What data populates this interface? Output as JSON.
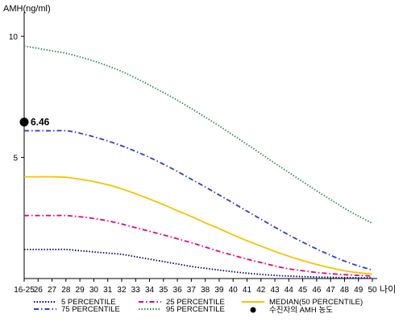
{
  "chart_data": {
    "type": "line",
    "ylabel": "AMH(ng/ml)",
    "xlabel": "나이",
    "x": [
      "16-25",
      "26",
      "27",
      "28",
      "29",
      "30",
      "31",
      "32",
      "33",
      "34",
      "35",
      "36",
      "37",
      "38",
      "39",
      "40",
      "41",
      "42",
      "43",
      "44",
      "45",
      "46",
      "47",
      "48",
      "49",
      "50"
    ],
    "yticks": [
      5,
      10
    ],
    "ylim": [
      0,
      11
    ],
    "grid": false,
    "series": [
      {
        "name": "5 PERCENTILE",
        "color": "#000080",
        "dash": "dotted",
        "values": [
          1.2,
          1.2,
          1.2,
          1.2,
          1.15,
          1.1,
          1.05,
          1.0,
          0.9,
          0.8,
          0.7,
          0.6,
          0.5,
          0.42,
          0.35,
          0.28,
          0.22,
          0.17,
          0.13,
          0.1,
          0.08,
          0.06,
          0.05,
          0.04,
          0.03,
          0.03
        ]
      },
      {
        "name": "25 PERCENTILE",
        "color": "#e6007e",
        "dash": "dashdot",
        "values": [
          2.6,
          2.6,
          2.6,
          2.6,
          2.55,
          2.48,
          2.38,
          2.25,
          2.1,
          1.95,
          1.8,
          1.64,
          1.48,
          1.3,
          1.12,
          0.96,
          0.8,
          0.66,
          0.52,
          0.4,
          0.32,
          0.25,
          0.2,
          0.16,
          0.13,
          0.1
        ]
      },
      {
        "name": "MEDIAN(50 PERCENTILE)",
        "color": "#f5c400",
        "dash": "solid",
        "values": [
          4.2,
          4.2,
          4.2,
          4.18,
          4.1,
          4.0,
          3.87,
          3.7,
          3.5,
          3.28,
          3.05,
          2.8,
          2.56,
          2.3,
          2.06,
          1.8,
          1.56,
          1.34,
          1.12,
          0.92,
          0.74,
          0.58,
          0.44,
          0.32,
          0.24,
          0.18
        ]
      },
      {
        "name": "75 PERCENTILE",
        "color": "#2e3ec8",
        "dash": "dashdot",
        "values": [
          6.1,
          6.1,
          6.1,
          6.1,
          6.0,
          5.85,
          5.68,
          5.48,
          5.25,
          5.0,
          4.72,
          4.42,
          4.1,
          3.78,
          3.45,
          3.12,
          2.78,
          2.45,
          2.12,
          1.8,
          1.5,
          1.22,
          0.96,
          0.72,
          0.52,
          0.35
        ]
      },
      {
        "name": "95 PERCENTILE",
        "color": "#2e8b57",
        "dash": "dotted",
        "values": [
          9.6,
          9.5,
          9.4,
          9.3,
          9.15,
          8.98,
          8.78,
          8.55,
          8.28,
          7.98,
          7.68,
          7.36,
          7.02,
          6.66,
          6.3,
          5.92,
          5.54,
          5.15,
          4.76,
          4.38,
          4.0,
          3.62,
          3.26,
          2.9,
          2.58,
          2.28
        ]
      }
    ],
    "marker": {
      "name": "수진자의 AMH 농도",
      "x": "16-25",
      "value": 6.46,
      "label": "6.46"
    }
  }
}
